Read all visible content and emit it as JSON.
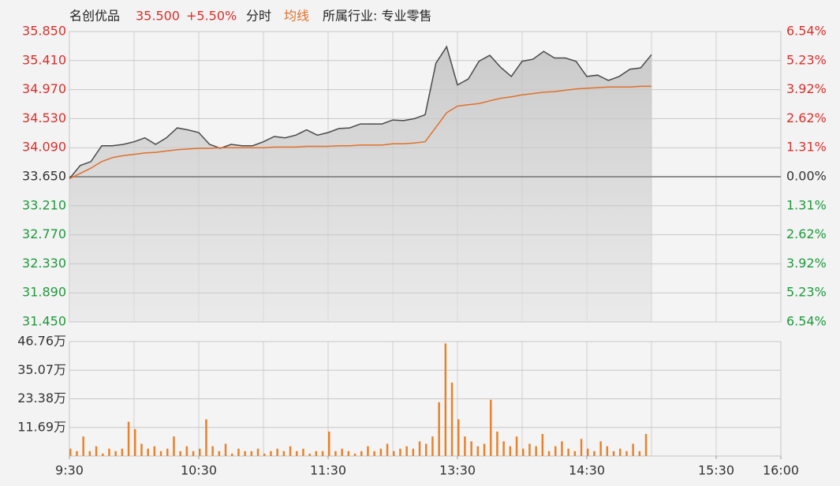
{
  "header": {
    "name": "名创优品",
    "price": "35.500",
    "change": "+5.50%",
    "industry": "所属行业: 专业零售"
  },
  "chart_data": [
    {
      "type": "line",
      "x": [
        0,
        5,
        10,
        15,
        20,
        25,
        30,
        35,
        40,
        45,
        50,
        55,
        60,
        65,
        70,
        75,
        80,
        85,
        90,
        95,
        100,
        105,
        110,
        115,
        120,
        125,
        130,
        135,
        140,
        145,
        150,
        155,
        160,
        165,
        170,
        175,
        180,
        185,
        190,
        195,
        200,
        205,
        210,
        215,
        220,
        225,
        230,
        235,
        240,
        245,
        250,
        255,
        260,
        265,
        270
      ],
      "series": [
        {
          "name": "分时",
          "color": "#4a4a4a",
          "values": [
            33.62,
            33.82,
            33.88,
            34.12,
            34.12,
            34.14,
            34.18,
            34.24,
            34.14,
            34.24,
            34.39,
            34.36,
            34.32,
            34.14,
            34.08,
            34.14,
            34.12,
            34.12,
            34.18,
            34.26,
            34.24,
            34.28,
            34.36,
            34.28,
            34.32,
            34.38,
            34.39,
            34.45,
            34.45,
            34.45,
            34.51,
            34.5,
            34.53,
            34.59,
            35.37,
            35.62,
            35.04,
            35.13,
            35.4,
            35.49,
            35.31,
            35.17,
            35.4,
            35.43,
            35.55,
            35.45,
            35.45,
            35.4,
            35.17,
            35.19,
            35.11,
            35.17,
            35.28,
            35.3,
            35.5
          ]
        },
        {
          "name": "均线",
          "color": "#e0702a",
          "values": [
            33.62,
            33.7,
            33.78,
            33.88,
            33.94,
            33.97,
            33.99,
            34.01,
            34.02,
            34.04,
            34.06,
            34.07,
            34.08,
            34.08,
            34.09,
            34.09,
            34.09,
            34.09,
            34.09,
            34.1,
            34.1,
            34.1,
            34.11,
            34.11,
            34.11,
            34.12,
            34.12,
            34.13,
            34.13,
            34.13,
            34.15,
            34.15,
            34.16,
            34.18,
            34.4,
            34.62,
            34.72,
            34.74,
            34.76,
            34.8,
            34.84,
            34.86,
            34.89,
            34.91,
            34.93,
            34.94,
            34.96,
            34.98,
            34.99,
            35.0,
            35.01,
            35.01,
            35.01,
            35.02,
            35.02
          ]
        }
      ],
      "xlim": [
        0,
        330
      ],
      "ylim": [
        31.45,
        35.85
      ],
      "yticks": [
        {
          "value": 35.85,
          "label": "35.850"
        },
        {
          "value": 35.41,
          "label": "35.410"
        },
        {
          "value": 34.97,
          "label": "34.970"
        },
        {
          "value": 34.53,
          "label": "34.530"
        },
        {
          "value": 34.09,
          "label": "34.090"
        },
        {
          "value": 33.65,
          "label": "33.650"
        },
        {
          "value": 33.21,
          "label": "33.210"
        },
        {
          "value": 32.77,
          "label": "32.770"
        },
        {
          "value": 32.33,
          "label": "32.330"
        },
        {
          "value": 31.89,
          "label": "31.890"
        },
        {
          "value": 31.45,
          "label": "31.450"
        }
      ],
      "y2lim": [
        -6.54,
        6.54
      ],
      "y2ticks": [
        {
          "value": 6.54,
          "label": "6.54%"
        },
        {
          "value": 5.23,
          "label": "5.23%"
        },
        {
          "value": 3.92,
          "label": "3.92%"
        },
        {
          "value": 2.62,
          "label": "2.62%"
        },
        {
          "value": 1.31,
          "label": "1.31%"
        },
        {
          "value": 0,
          "label": "0.00%"
        },
        {
          "value": -1.31,
          "label": "1.31%"
        },
        {
          "value": -2.62,
          "label": "2.62%"
        },
        {
          "value": -3.92,
          "label": "3.92%"
        },
        {
          "value": -5.23,
          "label": "5.23%"
        },
        {
          "value": -6.54,
          "label": "6.54%"
        }
      ],
      "up_color": "#d9302c",
      "down_color": "#1e9a3c",
      "grid": true
    },
    {
      "type": "bar",
      "x": [
        0,
        3,
        6,
        9,
        12,
        15,
        18,
        21,
        24,
        27,
        30,
        33,
        36,
        39,
        42,
        45,
        48,
        51,
        54,
        57,
        60,
        63,
        66,
        69,
        72,
        75,
        78,
        81,
        84,
        87,
        90,
        93,
        96,
        99,
        102,
        105,
        108,
        111,
        114,
        117,
        120,
        123,
        126,
        129,
        132,
        135,
        138,
        141,
        144,
        147,
        150,
        153,
        156,
        159,
        162,
        165,
        168,
        171,
        174,
        177,
        180,
        183,
        186,
        189,
        192,
        195,
        198,
        201,
        204,
        207,
        210,
        213,
        216,
        219,
        222,
        225,
        228,
        231,
        234,
        237,
        240,
        243,
        246,
        249,
        252,
        255,
        258,
        261,
        264,
        267
      ],
      "values": [
        3,
        2,
        8,
        2,
        4,
        1,
        3,
        2,
        3,
        14,
        11,
        5,
        3,
        4,
        2,
        3,
        8,
        2,
        4,
        2,
        3,
        15,
        4,
        2,
        5,
        1,
        3,
        2,
        2,
        3,
        1,
        2,
        3,
        2,
        4,
        2,
        3,
        1,
        2,
        2,
        10,
        2,
        3,
        2,
        1,
        2,
        4,
        2,
        3,
        5,
        2,
        3,
        4,
        3,
        6,
        5,
        8,
        22,
        46,
        30,
        15,
        8,
        6,
        4,
        5,
        23,
        10,
        6,
        4,
        8,
        3,
        5,
        4,
        9,
        2,
        4,
        6,
        3,
        2,
        7,
        3,
        2,
        6,
        4,
        2,
        3,
        2,
        5,
        2,
        9
      ],
      "color": "#e8822a",
      "xlim": [
        0,
        330
      ],
      "ylim": [
        0,
        46.76
      ],
      "yticks": [
        {
          "value": 11.69,
          "label": "11.69万"
        },
        {
          "value": 23.38,
          "label": "23.38万"
        },
        {
          "value": 35.07,
          "label": "35.07万"
        },
        {
          "value": 46.76,
          "label": "46.76万"
        }
      ],
      "xticks": [
        {
          "value": 0,
          "label": "9:30"
        },
        {
          "value": 60,
          "label": "10:30"
        },
        {
          "value": 120,
          "label": "11:30"
        },
        {
          "value": 180,
          "label": "13:30"
        },
        {
          "value": 240,
          "label": "14:30"
        },
        {
          "value": 300,
          "label": "15:30"
        },
        {
          "value": 330,
          "label": "16:00"
        }
      ],
      "grid": true
    }
  ]
}
